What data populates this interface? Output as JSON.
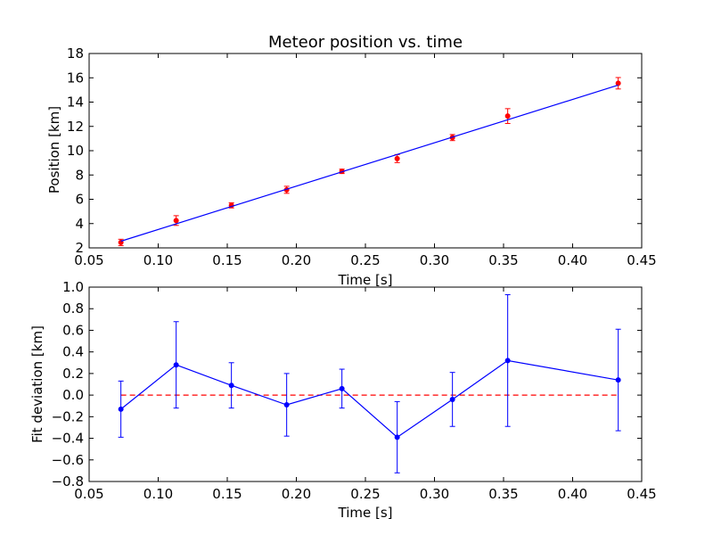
{
  "chart_data": [
    {
      "type": "scatter",
      "title": "Meteor position vs. time",
      "xlabel": "Time [s]",
      "ylabel": "Position [km]",
      "xlim": [
        0.05,
        0.45
      ],
      "ylim": [
        2,
        18
      ],
      "xticks": [
        "0.05",
        "0.10",
        "0.15",
        "0.20",
        "0.25",
        "0.30",
        "0.35",
        "0.40",
        "0.45"
      ],
      "yticks": [
        "2",
        "4",
        "6",
        "8",
        "10",
        "12",
        "14",
        "16",
        "18"
      ],
      "grid": false,
      "series": [
        {
          "kind": "errorbar-points",
          "color": "#ff0000",
          "x": [
            0.073,
            0.113,
            0.153,
            0.193,
            0.233,
            0.273,
            0.313,
            0.353,
            0.433
          ],
          "y": [
            2.45,
            4.25,
            5.5,
            6.78,
            8.3,
            9.35,
            11.08,
            12.85,
            15.55
          ],
          "yerr": [
            0.26,
            0.4,
            0.21,
            0.29,
            0.18,
            0.33,
            0.25,
            0.61,
            0.47
          ]
        },
        {
          "kind": "fit-line",
          "color": "#0000ff",
          "x": [
            0.073,
            0.433
          ],
          "y": [
            2.55,
            15.4
          ]
        }
      ]
    },
    {
      "type": "line",
      "title": "",
      "xlabel": "Time [s]",
      "ylabel": "Fit deviation [km]",
      "xlim": [
        0.05,
        0.45
      ],
      "ylim": [
        -0.8,
        1.0
      ],
      "xticks": [
        "0.05",
        "0.10",
        "0.15",
        "0.20",
        "0.25",
        "0.30",
        "0.35",
        "0.40",
        "0.45"
      ],
      "yticks": [
        "−0.8",
        "−0.6",
        "−0.4",
        "−0.2",
        "0.0",
        "0.2",
        "0.4",
        "0.6",
        "0.8",
        "1.0"
      ],
      "grid": false,
      "reference_line": {
        "y": 0.0,
        "color": "#ff0000",
        "style": "dashed"
      },
      "series": [
        {
          "color": "#0000ff",
          "x": [
            0.073,
            0.113,
            0.153,
            0.193,
            0.233,
            0.273,
            0.313,
            0.353,
            0.433
          ],
          "y": [
            -0.13,
            0.28,
            0.09,
            -0.09,
            0.06,
            -0.39,
            -0.04,
            0.32,
            0.14
          ],
          "yerr": [
            0.26,
            0.4,
            0.21,
            0.29,
            0.18,
            0.33,
            0.25,
            0.61,
            0.47
          ]
        }
      ]
    }
  ]
}
